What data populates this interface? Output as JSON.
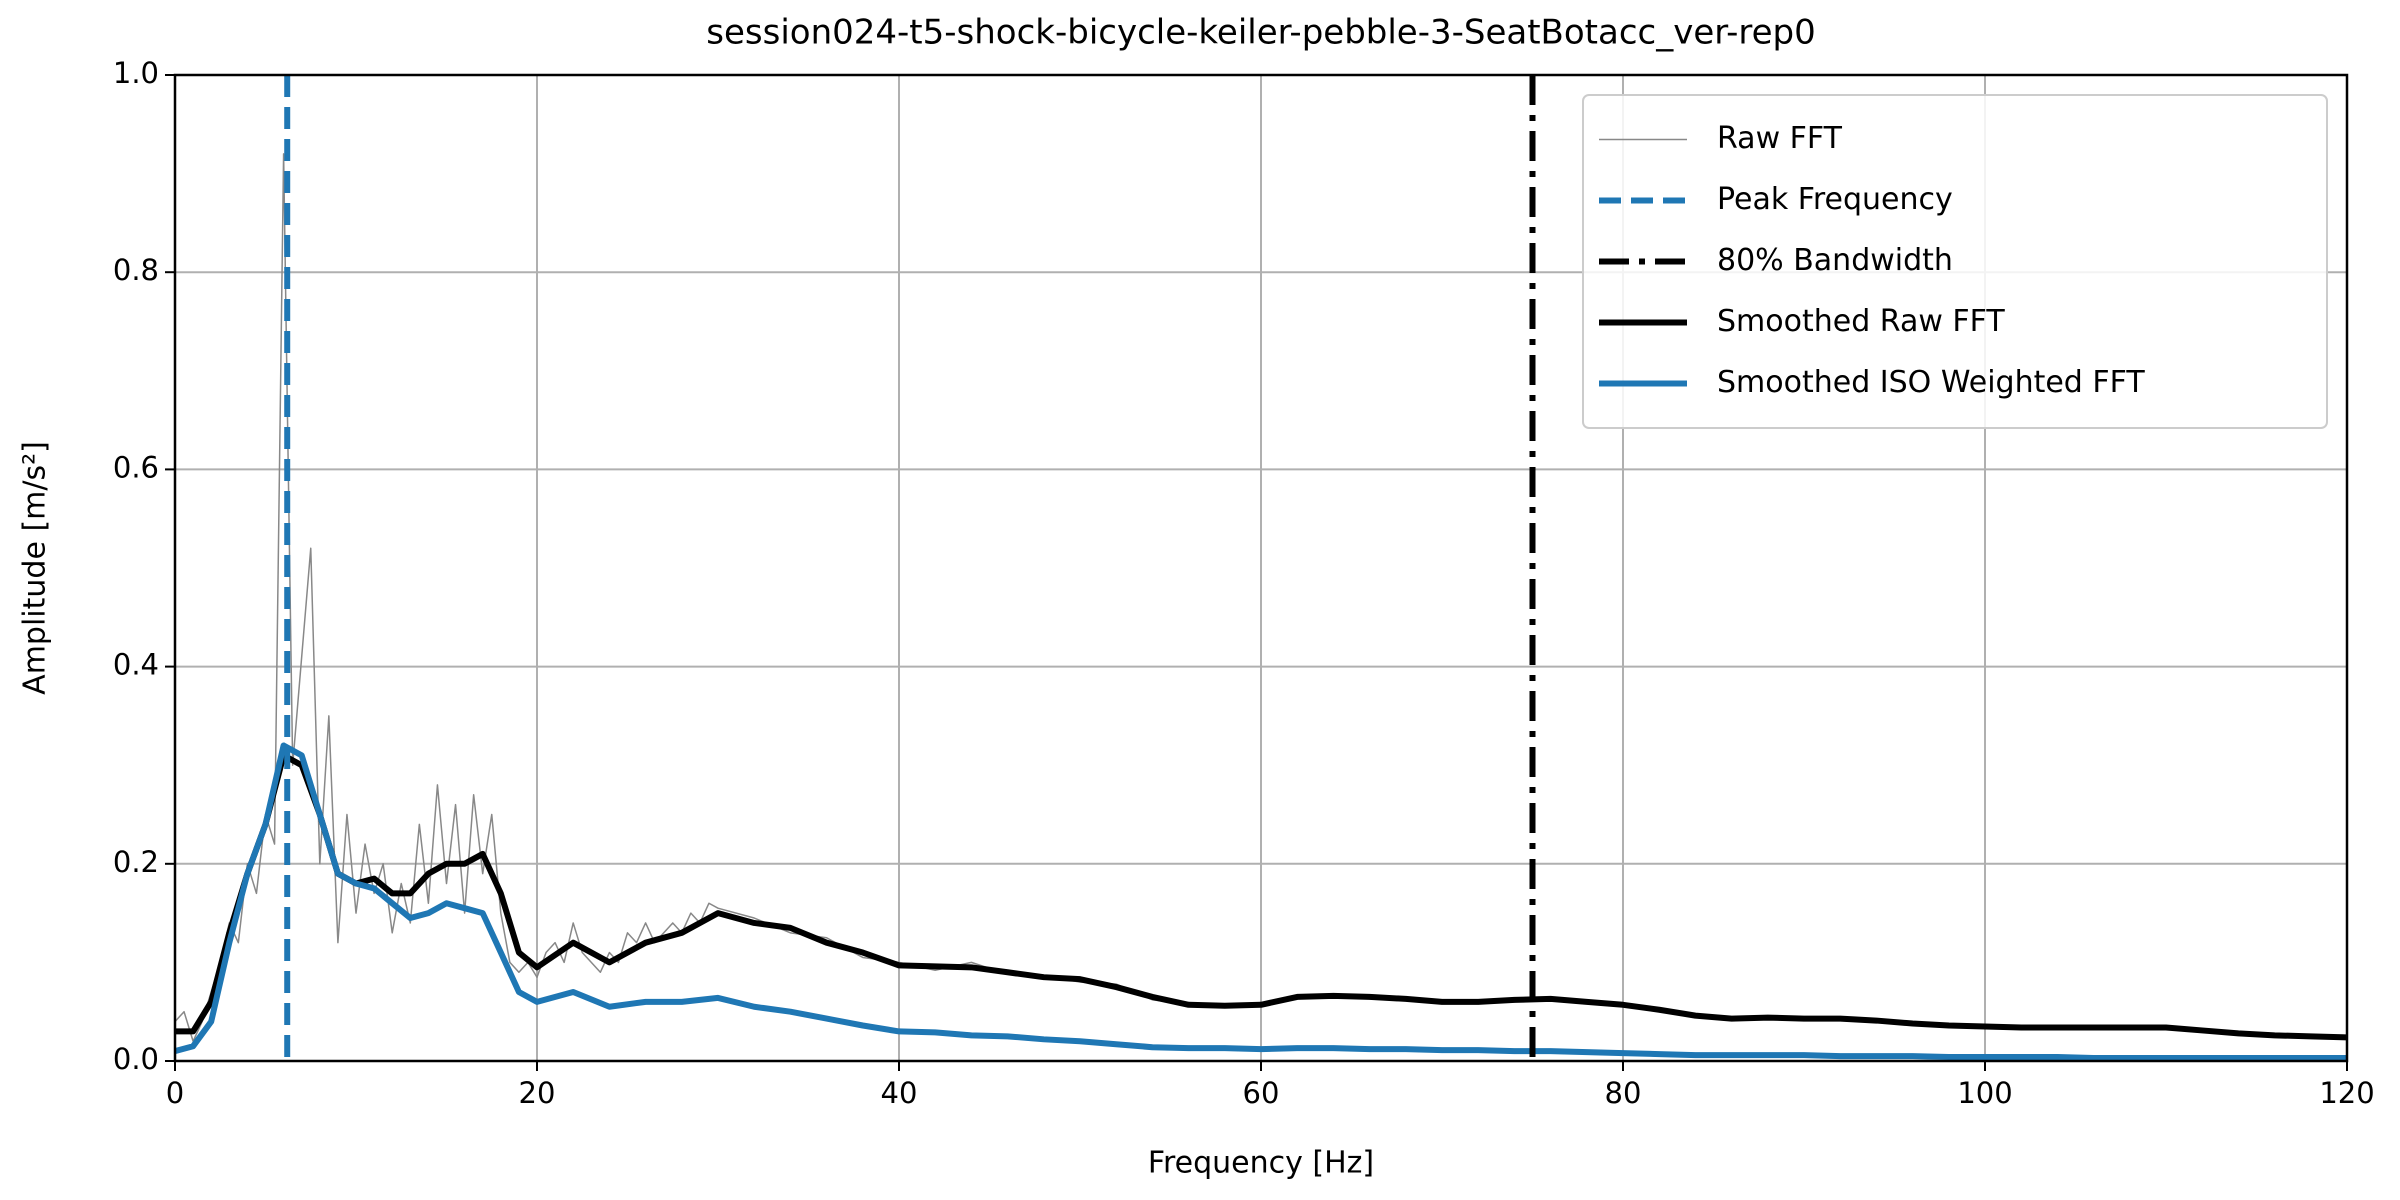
{
  "chart_data": {
    "type": "line",
    "title": "session024-t5-shock-bicycle-keiler-pebble-3-SeatBotacc_ver-rep0",
    "x_label": "Frequency [Hz]",
    "y_label": "Amplitude [m/s²]",
    "xlim": [
      0,
      120
    ],
    "ylim": [
      0,
      1
    ],
    "xticks": [
      0,
      20,
      40,
      60,
      80,
      100,
      120
    ],
    "yticks": [
      {
        "value": 0,
        "label": "0.0"
      },
      {
        "value": 0.2,
        "label": "0.2"
      },
      {
        "value": 0.4,
        "label": "0.4"
      },
      {
        "value": 0.6,
        "label": "0.6"
      },
      {
        "value": 0.8,
        "label": "0.8"
      },
      {
        "value": 1,
        "label": "1.0"
      }
    ],
    "grid": true,
    "legend": "upper right",
    "series": [
      {
        "name": "Raw FFT",
        "kind": "line",
        "color": "#888888",
        "linestyle": "solid",
        "linewidth": 1.5,
        "x": [
          0,
          0.5,
          1,
          1.5,
          2,
          2.5,
          3,
          3.5,
          4,
          4.5,
          5,
          5.5,
          6,
          6.5,
          7,
          7.5,
          8,
          8.5,
          9,
          9.5,
          10,
          10.5,
          11,
          11.5,
          12,
          12.5,
          13,
          13.5,
          14,
          14.5,
          15,
          15.5,
          16,
          16.5,
          17,
          17.5,
          18,
          18.5,
          19,
          19.5,
          20,
          20.5,
          21,
          21.5,
          22,
          22.5,
          23,
          23.5,
          24,
          24.5,
          25,
          25.5,
          26,
          26.5,
          27,
          27.5,
          28,
          28.5,
          29,
          29.5,
          30,
          32,
          34,
          36,
          38,
          40,
          42,
          44,
          46,
          48,
          50,
          52,
          54,
          56,
          58,
          60,
          62,
          64,
          66,
          68,
          70,
          72,
          74,
          76,
          78,
          80,
          82,
          84,
          86,
          88,
          90,
          92,
          94,
          96,
          98,
          100,
          102,
          104,
          106,
          108,
          110,
          112,
          114,
          116,
          118,
          120
        ],
        "values": [
          0.04,
          0.05,
          0.02,
          0.04,
          0.07,
          0.1,
          0.14,
          0.12,
          0.2,
          0.17,
          0.25,
          0.22,
          0.92,
          0.3,
          0.41,
          0.52,
          0.2,
          0.35,
          0.12,
          0.25,
          0.15,
          0.22,
          0.17,
          0.2,
          0.13,
          0.18,
          0.14,
          0.24,
          0.16,
          0.28,
          0.18,
          0.26,
          0.15,
          0.27,
          0.19,
          0.25,
          0.15,
          0.1,
          0.09,
          0.1,
          0.085,
          0.11,
          0.12,
          0.1,
          0.14,
          0.11,
          0.1,
          0.09,
          0.11,
          0.1,
          0.13,
          0.12,
          0.14,
          0.12,
          0.13,
          0.14,
          0.13,
          0.15,
          0.14,
          0.16,
          0.155,
          0.145,
          0.13,
          0.125,
          0.105,
          0.1,
          0.092,
          0.1,
          0.088,
          0.087,
          0.08,
          0.078,
          0.062,
          0.058,
          0.055,
          0.059,
          0.063,
          0.068,
          0.063,
          0.064,
          0.058,
          0.061,
          0.06,
          0.065,
          0.058,
          0.058,
          0.05,
          0.047,
          0.042,
          0.045,
          0.042,
          0.044,
          0.04,
          0.039,
          0.035,
          0.036,
          0.033,
          0.035,
          0.033,
          0.035,
          0.033,
          0.03,
          0.029,
          0.025,
          0.026,
          0.023
        ]
      },
      {
        "name": "Peak Frequency",
        "kind": "vline",
        "color": "#1f77b4",
        "linestyle": "dashed",
        "linewidth": 6,
        "x_value": 6.2
      },
      {
        "name": "80% Bandwidth",
        "kind": "vline",
        "color": "#000000",
        "linestyle": "dashdot",
        "linewidth": 6,
        "x_value": 75
      },
      {
        "name": "Smoothed Raw FFT",
        "kind": "line",
        "color": "#000000",
        "linestyle": "solid",
        "linewidth": 6,
        "x": [
          0,
          1,
          2,
          3,
          4,
          5,
          6,
          7,
          8,
          9,
          10,
          11,
          12,
          13,
          14,
          15,
          16,
          17,
          18,
          19,
          20,
          22,
          24,
          26,
          28,
          30,
          32,
          34,
          36,
          38,
          40,
          42,
          44,
          46,
          48,
          50,
          52,
          54,
          56,
          58,
          60,
          62,
          64,
          66,
          68,
          70,
          72,
          74,
          76,
          78,
          80,
          82,
          84,
          86,
          88,
          90,
          92,
          94,
          96,
          98,
          100,
          102,
          104,
          106,
          108,
          110,
          112,
          114,
          116,
          118,
          120
        ],
        "values": [
          0.03,
          0.03,
          0.06,
          0.13,
          0.19,
          0.24,
          0.31,
          0.3,
          0.25,
          0.19,
          0.18,
          0.185,
          0.17,
          0.17,
          0.19,
          0.2,
          0.2,
          0.21,
          0.17,
          0.11,
          0.095,
          0.12,
          0.1,
          0.12,
          0.13,
          0.15,
          0.14,
          0.135,
          0.12,
          0.11,
          0.097,
          0.096,
          0.095,
          0.09,
          0.085,
          0.083,
          0.075,
          0.065,
          0.057,
          0.056,
          0.057,
          0.065,
          0.066,
          0.065,
          0.063,
          0.06,
          0.06,
          0.062,
          0.063,
          0.06,
          0.057,
          0.052,
          0.046,
          0.043,
          0.044,
          0.043,
          0.043,
          0.041,
          0.038,
          0.036,
          0.035,
          0.034,
          0.034,
          0.034,
          0.034,
          0.034,
          0.031,
          0.028,
          0.026,
          0.025,
          0.024
        ]
      },
      {
        "name": "Smoothed ISO Weighted FFT",
        "kind": "line",
        "color": "#1f77b4",
        "linestyle": "solid",
        "linewidth": 6,
        "x": [
          0,
          1,
          2,
          3,
          4,
          5,
          6,
          7,
          8,
          9,
          10,
          11,
          12,
          13,
          14,
          15,
          16,
          17,
          18,
          19,
          20,
          22,
          24,
          26,
          28,
          30,
          32,
          34,
          36,
          38,
          40,
          42,
          44,
          46,
          48,
          50,
          52,
          54,
          56,
          58,
          60,
          62,
          64,
          66,
          68,
          70,
          72,
          74,
          76,
          78,
          80,
          82,
          84,
          86,
          88,
          90,
          92,
          94,
          96,
          98,
          100,
          102,
          104,
          106,
          108,
          110,
          112,
          114,
          116,
          118,
          120
        ],
        "values": [
          0.01,
          0.015,
          0.04,
          0.12,
          0.19,
          0.24,
          0.32,
          0.31,
          0.25,
          0.19,
          0.18,
          0.175,
          0.16,
          0.145,
          0.15,
          0.16,
          0.155,
          0.15,
          0.11,
          0.07,
          0.06,
          0.07,
          0.055,
          0.06,
          0.06,
          0.064,
          0.055,
          0.05,
          0.043,
          0.036,
          0.03,
          0.029,
          0.026,
          0.025,
          0.022,
          0.02,
          0.017,
          0.014,
          0.013,
          0.013,
          0.012,
          0.013,
          0.013,
          0.012,
          0.012,
          0.011,
          0.011,
          0.01,
          0.01,
          0.009,
          0.008,
          0.007,
          0.006,
          0.006,
          0.006,
          0.006,
          0.005,
          0.005,
          0.005,
          0.004,
          0.004,
          0.004,
          0.004,
          0.003,
          0.003,
          0.003,
          0.003,
          0.003,
          0.003,
          0.003,
          0.003
        ]
      }
    ]
  }
}
